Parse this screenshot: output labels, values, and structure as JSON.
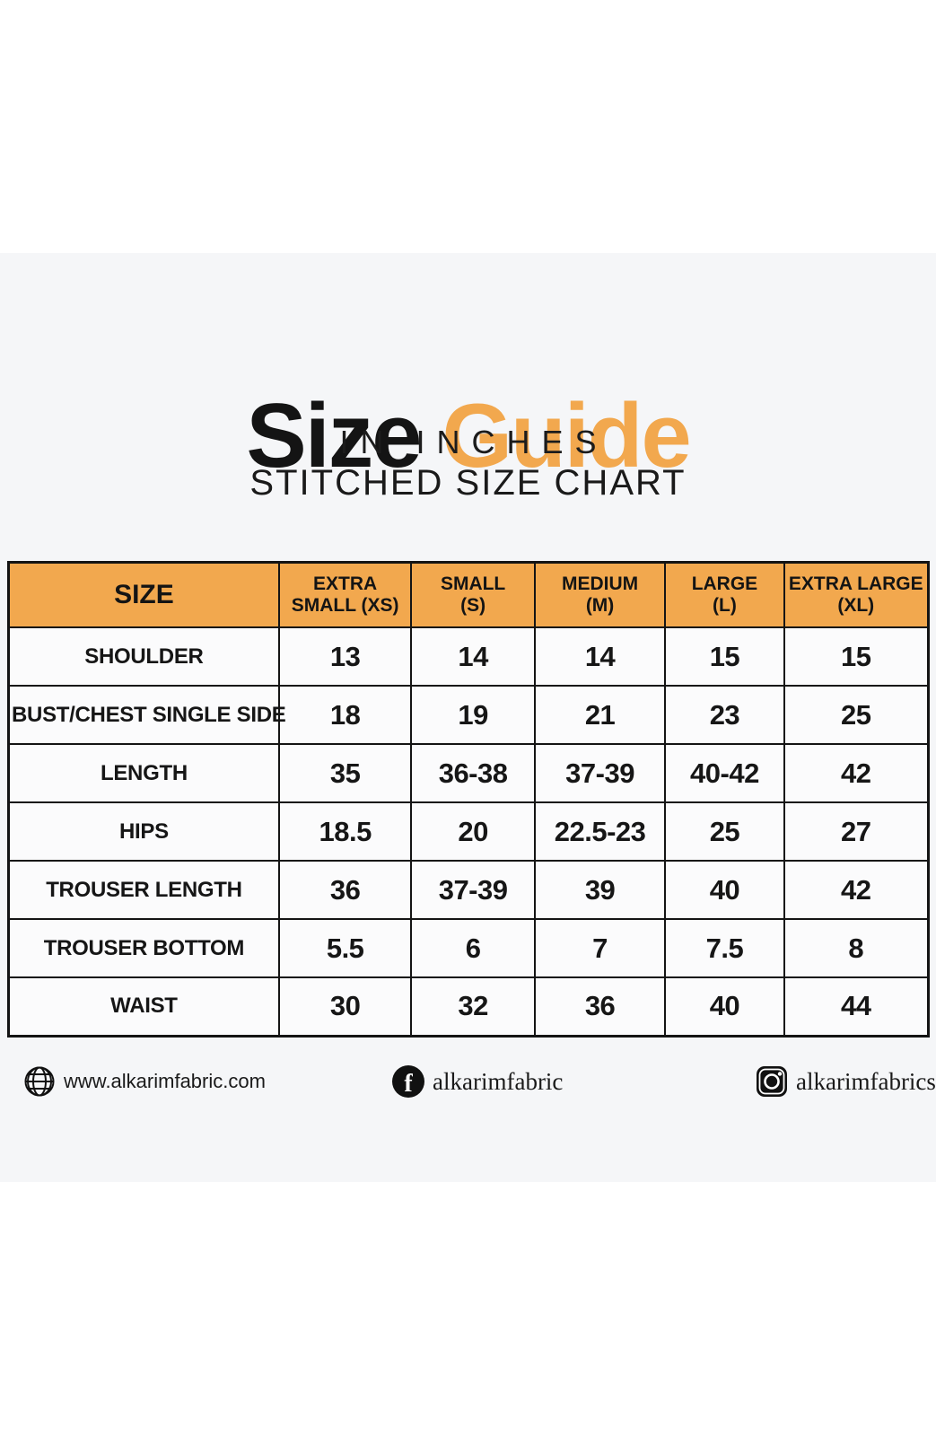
{
  "header": {
    "title_black": "Size",
    "title_orange": "Guide",
    "subtitle_line1": "IN INCHES",
    "subtitle_line2": "STITCHED SIZE CHART"
  },
  "table": {
    "headers": [
      {
        "line1": "SIZE",
        "line2": ""
      },
      {
        "line1": "EXTRA",
        "line2": "SMALL (XS)"
      },
      {
        "line1": "SMALL",
        "line2": "(S)"
      },
      {
        "line1": "MEDIUM",
        "line2": "(M)"
      },
      {
        "line1": "LARGE",
        "line2": "(L)"
      },
      {
        "line1": "EXTRA LARGE",
        "line2": "(XL)"
      }
    ],
    "rows": [
      {
        "label": "SHOULDER",
        "values": [
          "13",
          "14",
          "14",
          "15",
          "15"
        ]
      },
      {
        "label": "BUST/CHEST SINGLE SIDE",
        "values": [
          "18",
          "19",
          "21",
          "23",
          "25"
        ]
      },
      {
        "label": "LENGTH",
        "values": [
          "35",
          "36-38",
          "37-39",
          "40-42",
          "42"
        ]
      },
      {
        "label": "HIPS",
        "values": [
          "18.5",
          "20",
          "22.5-23",
          "25",
          "27"
        ]
      },
      {
        "label": "TROUSER LENGTH",
        "values": [
          "36",
          "37-39",
          "39",
          "40",
          "42"
        ]
      },
      {
        "label": "TROUSER BOTTOM",
        "values": [
          "5.5",
          "6",
          "7",
          "7.5",
          "8"
        ]
      },
      {
        "label": "WAIST",
        "values": [
          "30",
          "32",
          "36",
          "40",
          "44"
        ]
      }
    ]
  },
  "footer": {
    "website": "www.alkarimfabric.com",
    "facebook_handle": "alkarimfabric",
    "instagram_handle": "alkarimfabrics"
  },
  "colors": {
    "accent_orange": "#f2a84e",
    "text_black": "#161616",
    "band_background": "#f5f6f8"
  }
}
